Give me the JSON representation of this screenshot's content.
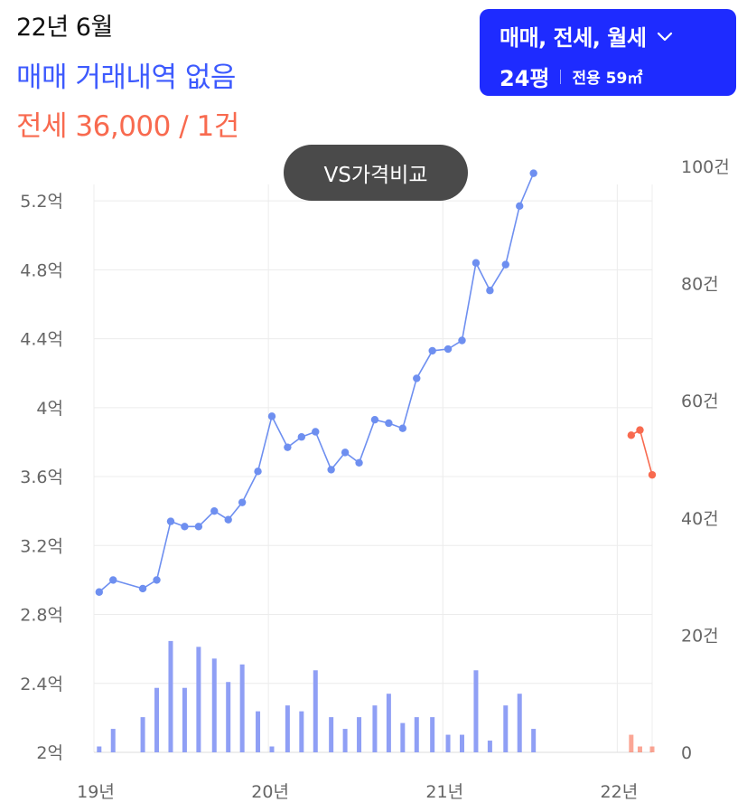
{
  "header": {
    "date": "22년 6월",
    "trade_status": "매매 거래내역 없음",
    "jeonse_summary": "전세 36,000 / 1건"
  },
  "selector": {
    "types": "매매, 전세, 월세",
    "pyeong": "24평",
    "area": "전용 59㎡"
  },
  "compare_button": "VS가격비교",
  "colors": {
    "trade_line": "#6e8ff0",
    "trade_bar": "#8f9ff5",
    "jeonse": "#f86a4f",
    "accent": "#1e2bff"
  },
  "chart_data": {
    "type": "line",
    "x_ticks": [
      {
        "value": 2019.0,
        "label": "19년"
      },
      {
        "value": 2020.0,
        "label": "20년"
      },
      {
        "value": 2021.0,
        "label": "21년"
      },
      {
        "value": 2022.0,
        "label": "22년"
      }
    ],
    "y_left_ticks": [
      {
        "value": 2.0,
        "label": "2억"
      },
      {
        "value": 2.4,
        "label": "2.4억"
      },
      {
        "value": 2.8,
        "label": "2.8억"
      },
      {
        "value": 3.2,
        "label": "3.2억"
      },
      {
        "value": 3.6,
        "label": "3.6억"
      },
      {
        "value": 4.0,
        "label": "4억"
      },
      {
        "value": 4.4,
        "label": "4.4억"
      },
      {
        "value": 4.8,
        "label": "4.8억"
      },
      {
        "value": 5.2,
        "label": "5.2억"
      }
    ],
    "y_right_ticks": [
      {
        "value": 0,
        "label": "0"
      },
      {
        "value": 20,
        "label": "20건"
      },
      {
        "value": 40,
        "label": "40건"
      },
      {
        "value": 60,
        "label": "60건"
      },
      {
        "value": 80,
        "label": "80건"
      },
      {
        "value": 100,
        "label": "100건"
      }
    ],
    "y_left_range": [
      2.0,
      5.4
    ],
    "y_right_range": [
      0,
      100
    ],
    "x_range": [
      2019.0,
      2022.2
    ],
    "grid": true,
    "series": [
      {
        "kind": "line",
        "x": [
          2019.03,
          2019.11,
          2019.28,
          2019.36,
          2019.44,
          2019.52,
          2019.6,
          2019.69,
          2019.77,
          2019.85,
          2019.94,
          2020.02,
          2020.11,
          2020.19,
          2020.27,
          2020.36,
          2020.44,
          2020.52,
          2020.61,
          2020.69,
          2020.77,
          2020.85,
          2020.94,
          2021.03,
          2021.11,
          2021.19,
          2021.27,
          2021.36,
          2021.44,
          2021.52
        ],
        "values": [
          2.93,
          3.0,
          2.95,
          3.0,
          3.34,
          3.31,
          3.31,
          3.4,
          3.35,
          3.45,
          3.63,
          3.95,
          3.77,
          3.83,
          3.86,
          3.64,
          3.74,
          3.68,
          3.93,
          3.91,
          3.88,
          4.17,
          4.33,
          4.34,
          4.39,
          4.84,
          4.68,
          4.83,
          5.17,
          5.36
        ]
      },
      {
        "kind": "bar",
        "x": [
          2019.03,
          2019.11,
          2019.28,
          2019.36,
          2019.44,
          2019.52,
          2019.6,
          2019.69,
          2019.77,
          2019.85,
          2019.94,
          2020.02,
          2020.11,
          2020.19,
          2020.27,
          2020.36,
          2020.44,
          2020.52,
          2020.61,
          2020.69,
          2020.77,
          2020.85,
          2020.94,
          2021.03,
          2021.11,
          2021.19,
          2021.27,
          2021.36,
          2021.44,
          2021.52
        ],
        "values": [
          1,
          4,
          6,
          11,
          19,
          11,
          18,
          16,
          12,
          15,
          7,
          1,
          8,
          7,
          14,
          6,
          4,
          6,
          8,
          10,
          5,
          6,
          6,
          3,
          3,
          14,
          2,
          8,
          10,
          4
        ]
      },
      {
        "kind": "line",
        "x": [
          2022.08,
          2022.13,
          2022.2
        ],
        "values": [
          3.84,
          3.87,
          3.61
        ]
      },
      {
        "kind": "bar",
        "x": [
          2022.08,
          2022.13,
          2022.2
        ],
        "values": [
          3,
          1,
          1
        ]
      }
    ]
  }
}
